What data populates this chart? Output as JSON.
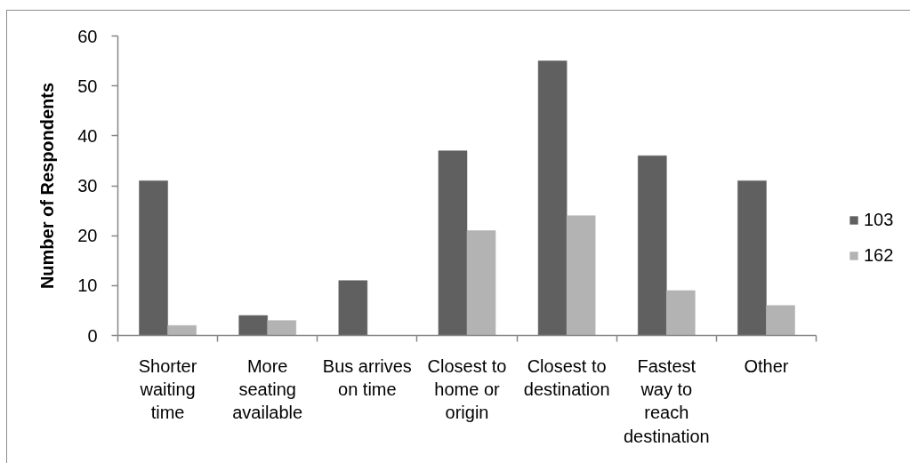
{
  "chart_data": {
    "type": "bar",
    "ylabel": "Number of Respondents",
    "categories": [
      "Shorter waiting time",
      "More seating available",
      "Bus arrives on time",
      "Closest to home or origin",
      "Closest to destination",
      "Fastest way to reach destination",
      "Other"
    ],
    "series": [
      {
        "name": "103",
        "color": "#606060",
        "values": [
          31,
          4,
          11,
          37,
          55,
          36,
          31
        ]
      },
      {
        "name": "162",
        "color": "#b3b3b3",
        "values": [
          2,
          3,
          0,
          21,
          24,
          9,
          6
        ]
      }
    ],
    "ylim": [
      0,
      60
    ],
    "yticks": [
      0,
      10,
      20,
      30,
      40,
      50,
      60
    ],
    "grid": false,
    "legend": "right"
  }
}
